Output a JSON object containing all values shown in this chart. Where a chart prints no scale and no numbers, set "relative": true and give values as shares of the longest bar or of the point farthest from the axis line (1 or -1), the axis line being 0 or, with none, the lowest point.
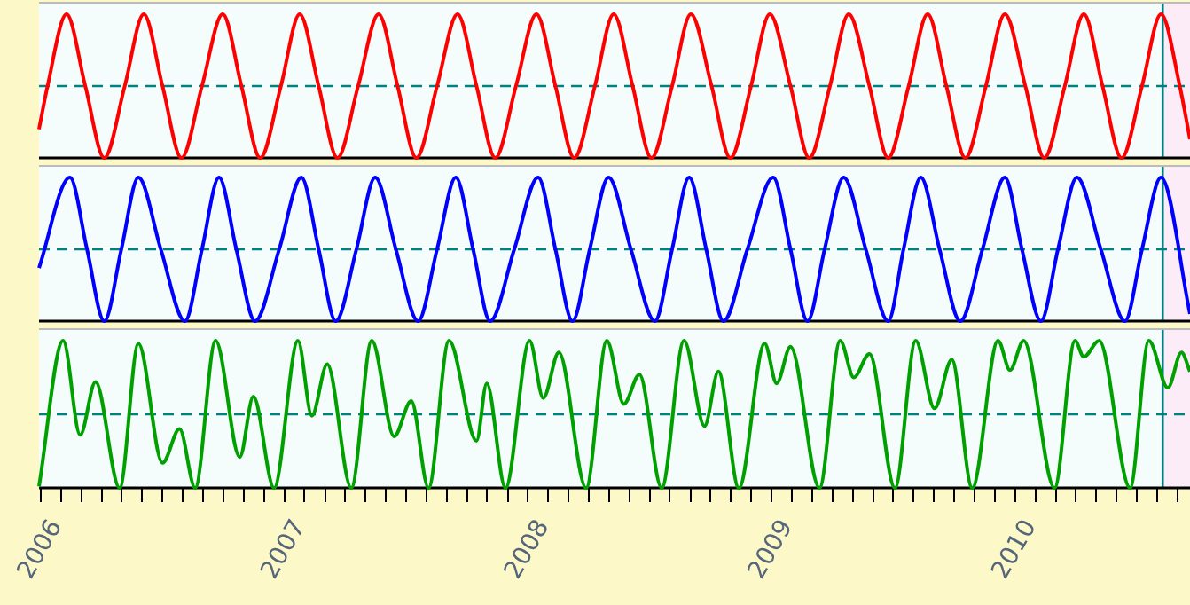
{
  "chart_data": [
    {
      "type": "line",
      "relative": true,
      "xlim": [
        2005.993,
        2010.718
      ],
      "tick_labels": false,
      "xticks": [
        2006,
        2007,
        2008,
        2009,
        2010
      ],
      "series": [
        {
          "color": "#ff0000",
          "x": [
            2005.993,
            2006.028,
            2006.106,
            2006.183,
            2006.261,
            2006.345,
            2006.423,
            2006.5,
            2006.578,
            2006.662,
            2006.747,
            2006.824,
            2006.901,
            2006.986,
            2007.063,
            2007.141,
            2007.218,
            2007.303,
            2007.387,
            2007.465,
            2007.542,
            2007.627,
            2007.711,
            2007.789,
            2007.866,
            2007.951,
            2008.035,
            2008.113,
            2008.19,
            2008.275,
            2008.352,
            2008.43,
            2008.507,
            2008.592,
            2008.669,
            2008.754,
            2008.831,
            2008.916,
            2008.993,
            2009.078,
            2009.155,
            2009.24,
            2009.317,
            2009.402,
            2009.479,
            2009.563,
            2009.641,
            2009.718,
            2009.796,
            2009.88,
            2009.958,
            2010.042,
            2010.12,
            2010.204,
            2010.282,
            2010.359,
            2010.437,
            2010.521,
            2010.599,
            2010.676,
            2010.718
          ],
          "values": [
            0.2,
            0.5,
            1,
            0.5,
            0,
            0.5,
            1,
            0.5,
            0,
            0.5,
            1,
            0.5,
            0,
            0.5,
            1,
            0.5,
            0,
            0.5,
            1,
            0.5,
            0,
            0.5,
            1,
            0.5,
            0,
            0.5,
            1,
            0.5,
            0,
            0.5,
            1,
            0.5,
            0,
            0.5,
            1,
            0.5,
            0,
            0.5,
            1,
            0.5,
            0,
            0.5,
            1,
            0.5,
            0,
            0.5,
            1,
            0.5,
            0,
            0.5,
            1,
            0.5,
            0,
            0.5,
            1,
            0.5,
            0,
            0.5,
            1,
            0.5,
            0.13
          ]
        }
      ],
      "ref_lines": [
        {
          "axis": "y",
          "value": 0.5,
          "color": "#008080",
          "line_style": "dashed"
        },
        {
          "axis": "x",
          "value": 2010.606,
          "color": "#008080",
          "line_style": "solid"
        }
      ],
      "bands": [
        {
          "axis": "x",
          "from": 2010.606,
          "to": 2010.718,
          "color": "#fcecf8"
        }
      ]
    },
    {
      "type": "line",
      "relative": true,
      "xlim": [
        2005.993,
        2010.718
      ],
      "tick_labels": false,
      "xticks": [
        2006,
        2007,
        2008,
        2009,
        2010
      ],
      "series": [
        {
          "color": "#0000ff",
          "x": [
            2005.993,
            2006.12,
            2006.19,
            2006.261,
            2006.331,
            2006.401,
            2006.493,
            2006.592,
            2006.662,
            2006.732,
            2006.803,
            2006.88,
            2006.979,
            2007.07,
            2007.141,
            2007.211,
            2007.296,
            2007.373,
            2007.458,
            2007.549,
            2007.627,
            2007.704,
            2007.775,
            2007.845,
            2007.944,
            2008.042,
            2008.113,
            2008.183,
            2008.254,
            2008.331,
            2008.423,
            2008.521,
            2008.592,
            2008.662,
            2008.732,
            2008.803,
            2008.901,
            2009.007,
            2009.078,
            2009.148,
            2009.218,
            2009.296,
            2009.387,
            2009.479,
            2009.542,
            2009.613,
            2009.69,
            2009.775,
            2009.866,
            2009.958,
            2010.028,
            2010.106,
            2010.176,
            2010.254,
            2010.352,
            2010.451,
            2010.521,
            2010.599,
            2010.718
          ],
          "values": [
            0.37,
            1,
            0.5,
            0,
            0.5,
            1,
            0.5,
            0,
            0.5,
            1,
            0.5,
            0,
            0.5,
            1,
            0.5,
            0,
            0.5,
            1,
            0.5,
            0,
            0.5,
            1,
            0.5,
            0,
            0.5,
            1,
            0.5,
            0,
            0.5,
            1,
            0.5,
            0,
            0.5,
            1,
            0.5,
            0,
            0.5,
            1,
            0.5,
            0,
            0.5,
            1,
            0.5,
            0,
            0.5,
            1,
            0.5,
            0,
            0.5,
            1,
            0.5,
            0,
            0.5,
            1,
            0.5,
            0,
            0.5,
            1,
            0.05
          ]
        }
      ],
      "ref_lines": [
        {
          "axis": "y",
          "value": 0.5,
          "color": "#008080",
          "line_style": "dashed"
        },
        {
          "axis": "x",
          "value": 2010.606,
          "color": "#008080",
          "line_style": "solid"
        }
      ],
      "bands": [
        {
          "axis": "x",
          "from": 2010.606,
          "to": 2010.718,
          "color": "#fcecf8"
        }
      ]
    },
    {
      "type": "line",
      "relative": true,
      "xlim": [
        2005.993,
        2010.718
      ],
      "tick_labels": "x",
      "xticks": [
        2006,
        {
          "value": 2006.083,
          "label": null
        },
        {
          "value": 2006.167,
          "label": null
        },
        {
          "value": 2006.25,
          "label": null
        },
        {
          "value": 2006.333,
          "label": null
        },
        {
          "value": 2006.417,
          "label": null
        },
        {
          "value": 2006.5,
          "label": null
        },
        {
          "value": 2006.583,
          "label": null
        },
        {
          "value": 2006.667,
          "label": null
        },
        {
          "value": 2006.75,
          "label": null
        },
        {
          "value": 2006.833,
          "label": null
        },
        {
          "value": 2006.917,
          "label": null
        },
        2007,
        {
          "value": 2007.083,
          "label": null
        },
        {
          "value": 2007.167,
          "label": null
        },
        {
          "value": 2007.25,
          "label": null
        },
        {
          "value": 2007.333,
          "label": null
        },
        {
          "value": 2007.417,
          "label": null
        },
        {
          "value": 2007.5,
          "label": null
        },
        {
          "value": 2007.583,
          "label": null
        },
        {
          "value": 2007.667,
          "label": null
        },
        {
          "value": 2007.75,
          "label": null
        },
        {
          "value": 2007.833,
          "label": null
        },
        {
          "value": 2007.917,
          "label": null
        },
        2008,
        {
          "value": 2008.083,
          "label": null
        },
        {
          "value": 2008.167,
          "label": null
        },
        {
          "value": 2008.25,
          "label": null
        },
        {
          "value": 2008.333,
          "label": null
        },
        {
          "value": 2008.417,
          "label": null
        },
        {
          "value": 2008.5,
          "label": null
        },
        {
          "value": 2008.583,
          "label": null
        },
        {
          "value": 2008.667,
          "label": null
        },
        {
          "value": 2008.75,
          "label": null
        },
        {
          "value": 2008.833,
          "label": null
        },
        {
          "value": 2008.917,
          "label": null
        },
        2009,
        {
          "value": 2009.083,
          "label": null
        },
        {
          "value": 2009.167,
          "label": null
        },
        {
          "value": 2009.25,
          "label": null
        },
        {
          "value": 2009.333,
          "label": null
        },
        {
          "value": 2009.417,
          "label": null
        },
        {
          "value": 2009.5,
          "label": null
        },
        {
          "value": 2009.583,
          "label": null
        },
        {
          "value": 2009.667,
          "label": null
        },
        {
          "value": 2009.75,
          "label": null
        },
        {
          "value": 2009.833,
          "label": null
        },
        {
          "value": 2009.917,
          "label": null
        },
        2010,
        {
          "value": 2010.083,
          "label": null
        },
        {
          "value": 2010.167,
          "label": null
        },
        {
          "value": 2010.25,
          "label": null
        },
        {
          "value": 2010.333,
          "label": null
        },
        {
          "value": 2010.417,
          "label": null
        },
        {
          "value": 2010.5,
          "label": null
        },
        {
          "value": 2010.583,
          "label": null
        },
        {
          "value": 2010.667,
          "label": null
        }
      ],
      "series": [
        {
          "color": "#00a000",
          "x": [
            2005.993,
            2006.092,
            2006.162,
            2006.225,
            2006.324,
            2006.401,
            2006.5,
            2006.57,
            2006.634,
            2006.718,
            2006.817,
            2006.873,
            2006.958,
            2007.056,
            2007.113,
            2007.176,
            2007.275,
            2007.359,
            2007.451,
            2007.521,
            2007.592,
            2007.676,
            2007.789,
            2007.831,
            2007.908,
            2008.007,
            2008.063,
            2008.127,
            2008.239,
            2008.324,
            2008.394,
            2008.458,
            2008.549,
            2008.641,
            2008.725,
            2008.782,
            2008.866,
            2008.972,
            2009.021,
            2009.078,
            2009.197,
            2009.282,
            2009.338,
            2009.402,
            2009.507,
            2009.592,
            2009.669,
            2009.74,
            2009.824,
            2009.93,
            2009.979,
            2010.035,
            2010.162,
            2010.246,
            2010.282,
            2010.345,
            2010.472,
            2010.549,
            2010.627,
            2010.683,
            2010.718
          ],
          "values": [
            0.01,
            1,
            0.36,
            0.72,
            0,
            0.98,
            0.17,
            0.4,
            0,
            1,
            0.21,
            0.62,
            0,
            1,
            0.49,
            0.84,
            0,
            1,
            0.35,
            0.59,
            0,
            1,
            0.32,
            0.71,
            0,
            1,
            0.61,
            0.92,
            0,
            1,
            0.57,
            0.77,
            0,
            1,
            0.42,
            0.79,
            0,
            0.98,
            0.71,
            0.96,
            0,
            1,
            0.75,
            0.91,
            0,
            1,
            0.54,
            0.87,
            0,
            1,
            0.8,
            1,
            0,
            1,
            0.89,
            1,
            0,
            1,
            0.68,
            0.92,
            0.79
          ]
        }
      ],
      "ref_lines": [
        {
          "axis": "y",
          "value": 0.5,
          "color": "#008080",
          "line_style": "dashed"
        },
        {
          "axis": "x",
          "value": 2010.606,
          "color": "#008080",
          "line_style": "solid"
        }
      ],
      "bands": [
        {
          "axis": "x",
          "from": 2010.606,
          "to": 2010.718,
          "color": "#fcecf8"
        }
      ]
    }
  ]
}
